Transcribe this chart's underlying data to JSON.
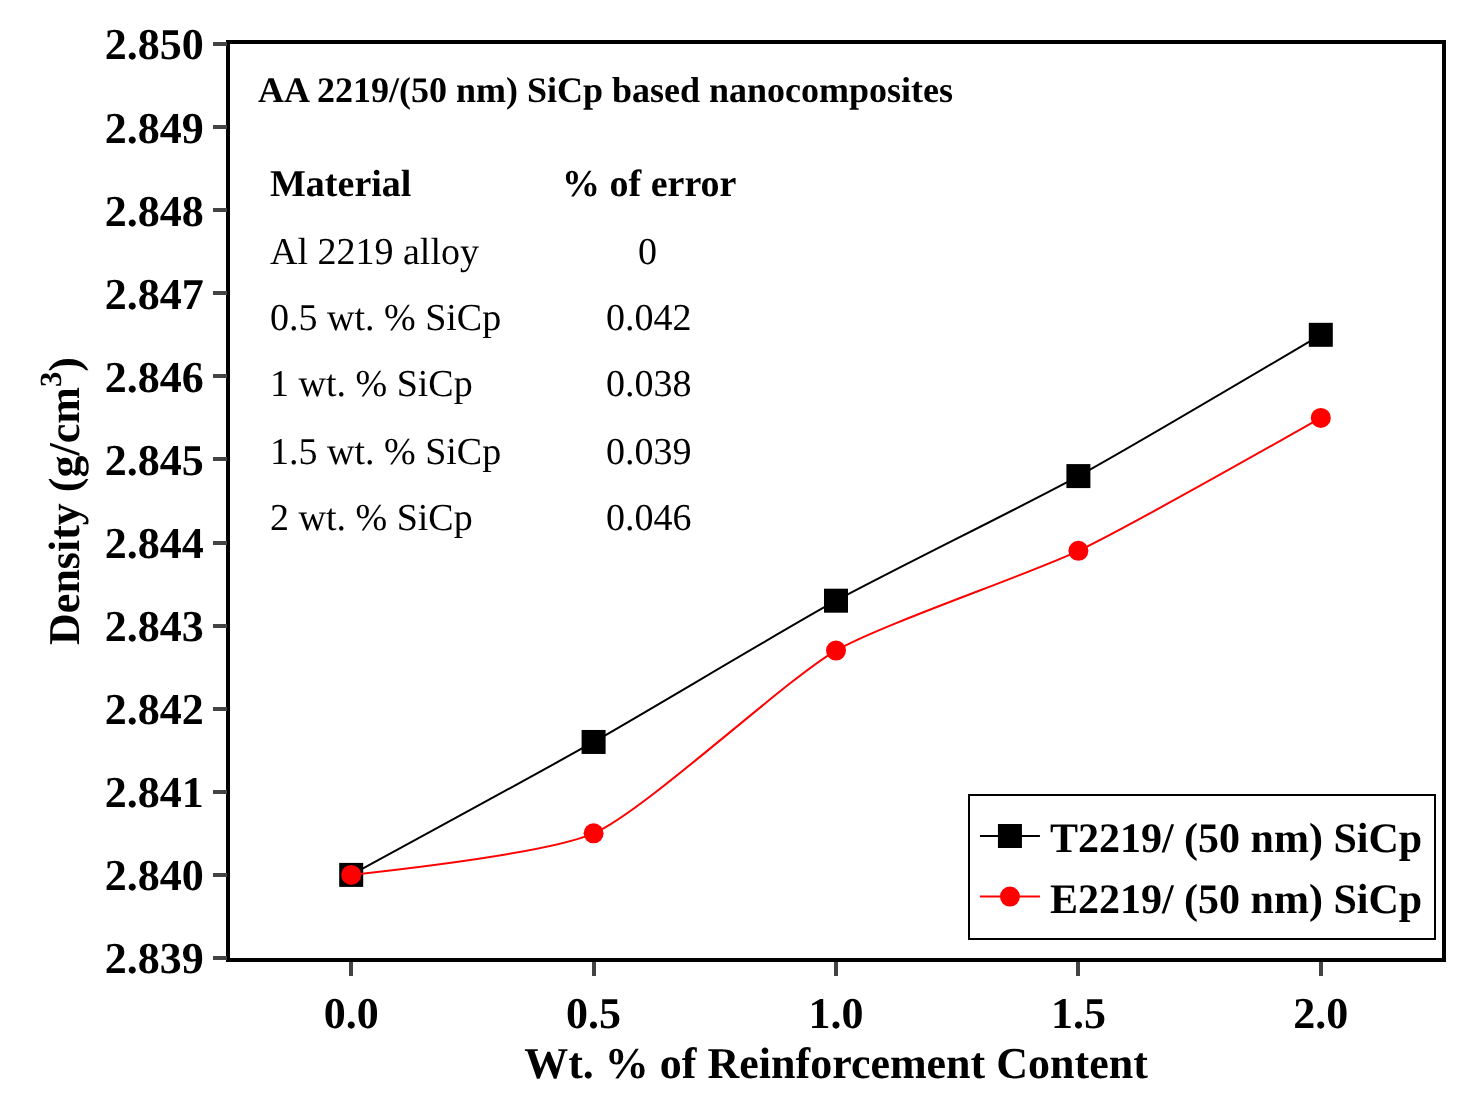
{
  "chart_data": {
    "type": "line",
    "title": "AA 2219/(50 nm) SiCp based nanocomposites",
    "xlabel": "Wt. % of Reinforcement Content",
    "ylabel": "Density (g/cm$^{3}$)",
    "x": [
      0,
      0.5,
      1.0,
      1.5,
      2.0
    ],
    "series": [
      {
        "name": "T2219/ (50 nm) SiCp",
        "color": "#000000",
        "marker": "square",
        "values": [
          2.84,
          2.8416,
          2.8433,
          2.8448,
          2.8465
        ]
      },
      {
        "name": "E2219/ (50 nm) SiCp",
        "color": "#ff0000",
        "marker": "circle",
        "values": [
          2.84,
          2.8405,
          2.8427,
          2.8439,
          2.8455
        ]
      }
    ],
    "annotations": [
      "Material",
      "% of error",
      "Al 2219 alloy",
      "0",
      "0.5 wt. % SiCp",
      "0.042",
      "1 wt. % SiCp",
      "0.038",
      "1.5 wt. % SiCp",
      "0.039",
      "2 wt. % SiCp",
      "0.046"
    ],
    "xlim": [
      -0.25,
      2.25
    ],
    "ylim": [
      2.839,
      2.85
    ],
    "xticks": [
      {
        "value": 0,
        "label": "0.0"
      },
      0.5,
      {
        "value": 1.0,
        "label": "1.0"
      },
      1.5,
      {
        "value": 2.0,
        "label": "2.0"
      }
    ],
    "yticks": [
      {
        "value": 2.839,
        "label": "2.839"
      },
      {
        "value": 2.84,
        "label": "2.840"
      },
      {
        "value": 2.841,
        "label": "2.841"
      },
      {
        "value": 2.842,
        "label": "2.842"
      },
      {
        "value": 2.843,
        "label": "2.843"
      },
      {
        "value": 2.844,
        "label": "2.844"
      },
      {
        "value": 2.845,
        "label": "2.845"
      },
      {
        "value": 2.846,
        "label": "2.846"
      },
      {
        "value": 2.847,
        "label": "2.847"
      },
      {
        "value": 2.848,
        "label": "2.848"
      },
      {
        "value": 2.849,
        "label": "2.849"
      },
      {
        "value": 2.85,
        "label": "2.850"
      }
    ],
    "legend": "bottom right",
    "line_style": "solid"
  }
}
